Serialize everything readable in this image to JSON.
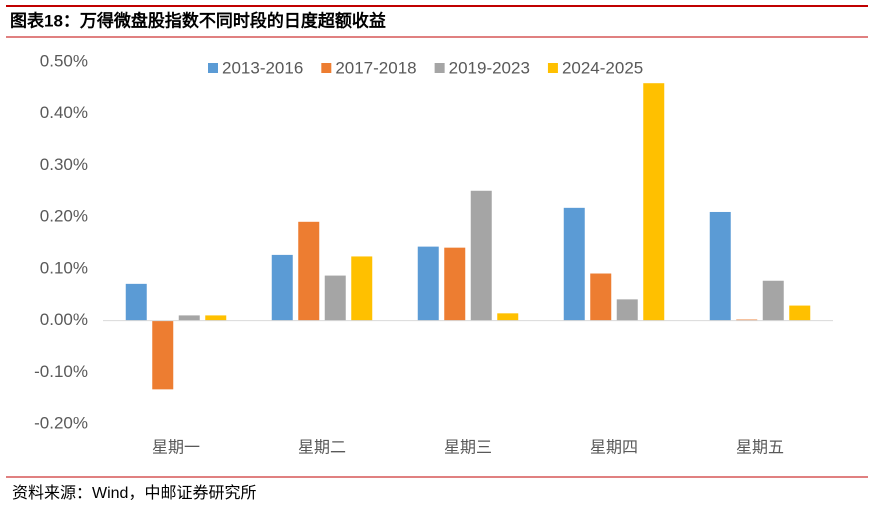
{
  "title": "图表18：万得微盘股指数不同时段的日度超额收益",
  "source": "资料来源：Wind，中邮证券研究所",
  "chart_data": {
    "type": "bar",
    "categories": [
      "星期一",
      "星期二",
      "星期三",
      "星期四",
      "星期五"
    ],
    "series": [
      {
        "name": "2013-2016",
        "color": "#5b9bd5",
        "values": [
          0.071,
          0.127,
          0.143,
          0.218,
          0.21
        ]
      },
      {
        "name": "2017-2018",
        "color": "#ed7d31",
        "values": [
          -0.133,
          0.191,
          0.141,
          0.091,
          0.002
        ]
      },
      {
        "name": "2019-2023",
        "color": "#a5a5a5",
        "values": [
          0.01,
          0.087,
          0.251,
          0.041,
          0.077
        ]
      },
      {
        "name": "2024-2025",
        "color": "#ffc000",
        "values": [
          0.01,
          0.124,
          0.014,
          0.459,
          0.029
        ]
      }
    ],
    "ylim": [
      -0.2,
      0.5
    ],
    "yticks": [
      {
        "value": -0.2,
        "label": "-0.20%"
      },
      {
        "value": -0.1,
        "label": "-0.10%"
      },
      {
        "value": 0,
        "label": "0.00%"
      },
      {
        "value": 0.1,
        "label": "0.10%"
      },
      {
        "value": 0.2,
        "label": "0.20%"
      },
      {
        "value": 0.3,
        "label": "0.30%"
      },
      {
        "value": 0.4,
        "label": "0.40%"
      },
      {
        "value": 0.5,
        "label": "0.50%"
      }
    ],
    "grid": false,
    "legend": "top"
  }
}
